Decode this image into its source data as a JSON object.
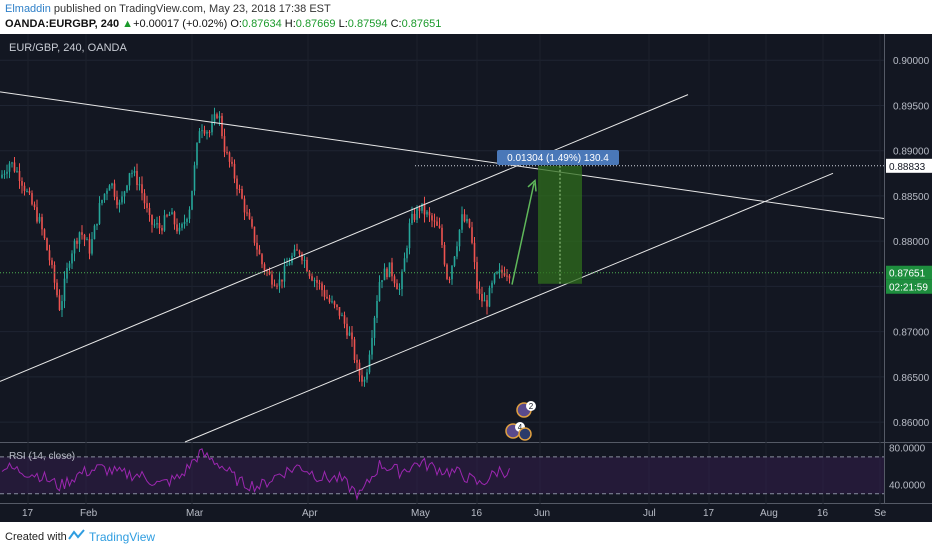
{
  "header": {
    "author": "Elmaddin",
    "published_text": "published on TradingView.com, May 23, 2018 17:38 EST",
    "symbol": "OANDA:EURGBP, 240",
    "change_arrow": "▲",
    "change": "+0.00017 (+0.02%)",
    "open_label": "O:",
    "open": "0.87634",
    "high_label": "H:",
    "high": "0.87669",
    "low_label": "L:",
    "low": "0.87594",
    "close_label": "C:",
    "close": "0.87651"
  },
  "chart": {
    "legend": "EUR/GBP, 240, OANDA",
    "measure_label": "0.01304 (1.49%) 130.4",
    "level_badge": "0.88833",
    "last_price_badge": "0.87651",
    "countdown_badge": "02:21:59",
    "colors": {
      "background": "#131722",
      "up": "#26a69a",
      "down": "#ef5350",
      "rsi": "#9c27b0",
      "target": "#2f6e1c",
      "line": "#e8e8e8"
    },
    "event_badges": [
      "2",
      "4"
    ]
  },
  "rsi": {
    "label": "RSI (14, close)"
  },
  "chart_data": {
    "type": "candlestick",
    "symbol": "EUR/GBP",
    "interval": "240",
    "ylim": [
      0.8578,
      0.9029
    ],
    "y_ticks": [
      "0.90000",
      "0.89500",
      "0.89000",
      "0.88500",
      "0.88000",
      "0.87500",
      "0.87000",
      "0.86500",
      "0.86000"
    ],
    "x_ticks": [
      "17",
      "Feb",
      "Mar",
      "Apr",
      "May",
      "16",
      "Jun",
      "Jul",
      "17",
      "Aug",
      "16",
      "Se"
    ],
    "price_path": [
      [
        0,
        0.887
      ],
      [
        10,
        0.8888
      ],
      [
        20,
        0.8872
      ],
      [
        30,
        0.8845
      ],
      [
        40,
        0.882
      ],
      [
        50,
        0.8778
      ],
      [
        60,
        0.8725
      ],
      [
        70,
        0.8785
      ],
      [
        80,
        0.8812
      ],
      [
        90,
        0.879
      ],
      [
        100,
        0.884
      ],
      [
        110,
        0.8868
      ],
      [
        120,
        0.8838
      ],
      [
        130,
        0.888
      ],
      [
        140,
        0.8862
      ],
      [
        150,
        0.882
      ],
      [
        160,
        0.8815
      ],
      [
        170,
        0.883
      ],
      [
        180,
        0.8808
      ],
      [
        190,
        0.884
      ],
      [
        200,
        0.893
      ],
      [
        210,
        0.892
      ],
      [
        218,
        0.8945
      ],
      [
        225,
        0.89
      ],
      [
        235,
        0.887
      ],
      [
        245,
        0.8835
      ],
      [
        255,
        0.88
      ],
      [
        262,
        0.8775
      ],
      [
        270,
        0.876
      ],
      [
        280,
        0.8755
      ],
      [
        290,
        0.878
      ],
      [
        300,
        0.879
      ],
      [
        310,
        0.8765
      ],
      [
        320,
        0.875
      ],
      [
        330,
        0.8732
      ],
      [
        340,
        0.872
      ],
      [
        350,
        0.8695
      ],
      [
        358,
        0.8655
      ],
      [
        365,
        0.8645
      ],
      [
        372,
        0.87
      ],
      [
        380,
        0.876
      ],
      [
        390,
        0.877
      ],
      [
        400,
        0.8745
      ],
      [
        410,
        0.882
      ],
      [
        420,
        0.8838
      ],
      [
        430,
        0.8825
      ],
      [
        440,
        0.881
      ],
      [
        448,
        0.8755
      ],
      [
        455,
        0.879
      ],
      [
        462,
        0.8825
      ],
      [
        470,
        0.8815
      ],
      [
        478,
        0.874
      ],
      [
        486,
        0.873
      ],
      [
        495,
        0.876
      ],
      [
        505,
        0.8768
      ],
      [
        511,
        0.8765
      ]
    ],
    "rsi_path": [
      [
        0,
        60
      ],
      [
        20,
        55
      ],
      [
        40,
        50
      ],
      [
        60,
        38
      ],
      [
        80,
        52
      ],
      [
        100,
        58
      ],
      [
        120,
        52
      ],
      [
        140,
        50
      ],
      [
        160,
        40
      ],
      [
        180,
        48
      ],
      [
        200,
        74
      ],
      [
        220,
        62
      ],
      [
        240,
        42
      ],
      [
        260,
        38
      ],
      [
        280,
        52
      ],
      [
        300,
        60
      ],
      [
        320,
        48
      ],
      [
        340,
        46
      ],
      [
        360,
        28
      ],
      [
        380,
        62
      ],
      [
        400,
        54
      ],
      [
        420,
        64
      ],
      [
        440,
        56
      ],
      [
        460,
        52
      ],
      [
        480,
        40
      ],
      [
        500,
        56
      ],
      [
        511,
        52
      ]
    ],
    "rsi_ylim": [
      20,
      85
    ],
    "rsi_ticks": [
      "80.0000",
      "40.0000"
    ],
    "trendlines": [
      {
        "name": "descending-resistance",
        "from": [
          0,
          0.8965
        ],
        "to": [
          884,
          0.8825
        ]
      },
      {
        "name": "channel-upper",
        "from": [
          0,
          0.8645
        ],
        "to": [
          688,
          0.8962
        ]
      },
      {
        "name": "channel-lower",
        "from": [
          185,
          0.8578
        ],
        "to": [
          833,
          0.8875
        ]
      }
    ],
    "measure": {
      "from_price": 0.87529,
      "to_price": 0.88833,
      "x_from": 538,
      "x_to": 582
    },
    "last_price": 0.87651,
    "level_price": 0.88833
  }
}
